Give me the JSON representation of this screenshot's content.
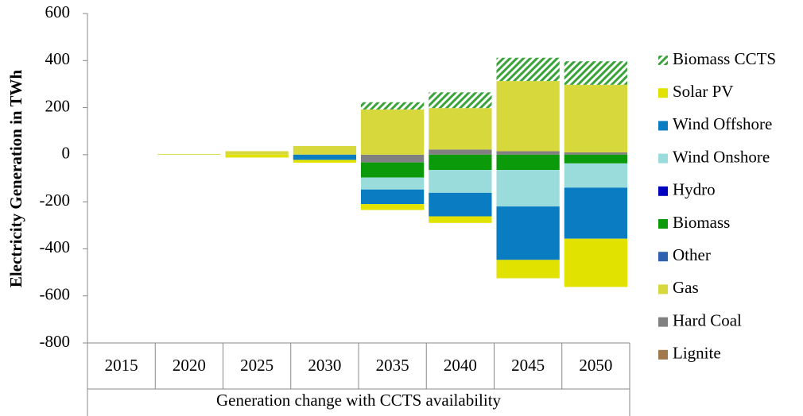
{
  "chart_data": {
    "type": "stacked-bar",
    "y_label": "Electricity Generation in TWh",
    "x_label": "Generation change with CCTS availability",
    "categories": [
      "2015",
      "2020",
      "2025",
      "2030",
      "2035",
      "2040",
      "2045",
      "2050"
    ],
    "ylim": [
      -800,
      600
    ],
    "yticks": [
      -800,
      -600,
      -400,
      -200,
      0,
      200,
      400,
      600
    ],
    "grid": false,
    "legend": "right",
    "series": [
      {
        "name": "Biomass CCTS",
        "color": "#3aa33a",
        "hatch": true,
        "values": [
          0,
          0,
          0,
          0,
          31,
          67,
          99,
          100
        ]
      },
      {
        "name": "Solar PV",
        "color": "#e2e200",
        "values": [
          0,
          0,
          -12,
          -12,
          -25,
          -28,
          -78,
          -205
        ]
      },
      {
        "name": "Wind Offshore",
        "color": "#0a7dc2",
        "values": [
          0,
          0,
          0,
          -22,
          -62,
          -100,
          -227,
          -217
        ]
      },
      {
        "name": "Wind Onshore",
        "color": "#9adcdc",
        "values": [
          0,
          0,
          0,
          0,
          -51,
          -97,
          -155,
          -103
        ]
      },
      {
        "name": "Hydro",
        "color": "#0000c0",
        "values": [
          0,
          0,
          0,
          0,
          0,
          0,
          0,
          0
        ]
      },
      {
        "name": "Biomass",
        "color": "#0a9a0a",
        "values": [
          0,
          0,
          0,
          0,
          -64,
          -65,
          -65,
          -37
        ]
      },
      {
        "name": "Other",
        "color": "#3060b0",
        "values": [
          0,
          0,
          0,
          0,
          0,
          0,
          0,
          0
        ]
      },
      {
        "name": "Gas",
        "color": "#d6d83c",
        "values": [
          0,
          3,
          15,
          37,
          192,
          176,
          298,
          287
        ]
      },
      {
        "name": "Hard Coal",
        "color": "#808080",
        "values": [
          0,
          0,
          0,
          0,
          -33,
          22,
          15,
          10
        ]
      },
      {
        "name": "Lignite",
        "color": "#a0784a",
        "values": [
          0,
          0,
          0,
          0,
          0,
          0,
          0,
          0
        ]
      }
    ]
  }
}
